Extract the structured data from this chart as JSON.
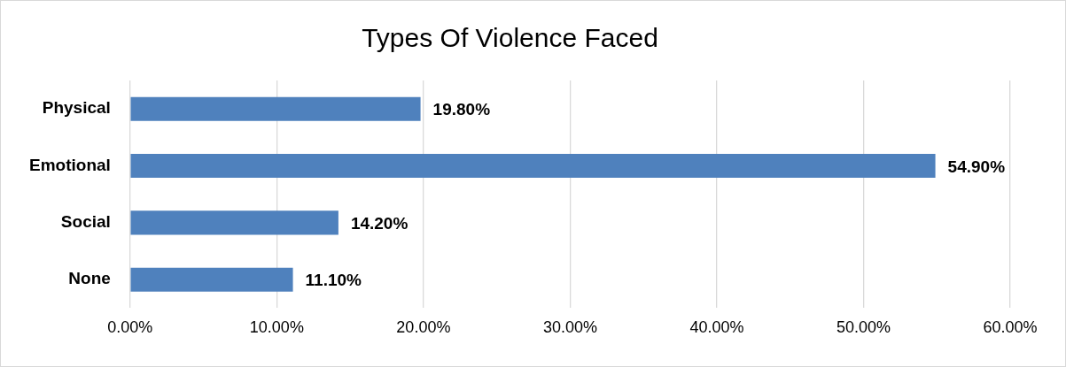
{
  "chart_data": {
    "type": "bar",
    "orientation": "horizontal",
    "title": "Types Of Violence Faced",
    "categories": [
      "Physical",
      "Emotional",
      "Social",
      "None"
    ],
    "values": [
      19.8,
      54.9,
      14.2,
      11.1
    ],
    "value_labels": [
      "19.80%",
      "54.90%",
      "14.20%",
      "11.10%"
    ],
    "color": "#4f81bd",
    "xlim": [
      0,
      60
    ],
    "xticks": [
      {
        "value": 0,
        "label": "0.00%"
      },
      {
        "value": 10,
        "label": "10.00%"
      },
      {
        "value": 20,
        "label": "20.00%"
      },
      {
        "value": 30,
        "label": "30.00%"
      },
      {
        "value": 40,
        "label": "40.00%"
      },
      {
        "value": 50,
        "label": "50.00%"
      },
      {
        "value": 60,
        "label": "60.00%"
      }
    ],
    "grid": "x"
  }
}
